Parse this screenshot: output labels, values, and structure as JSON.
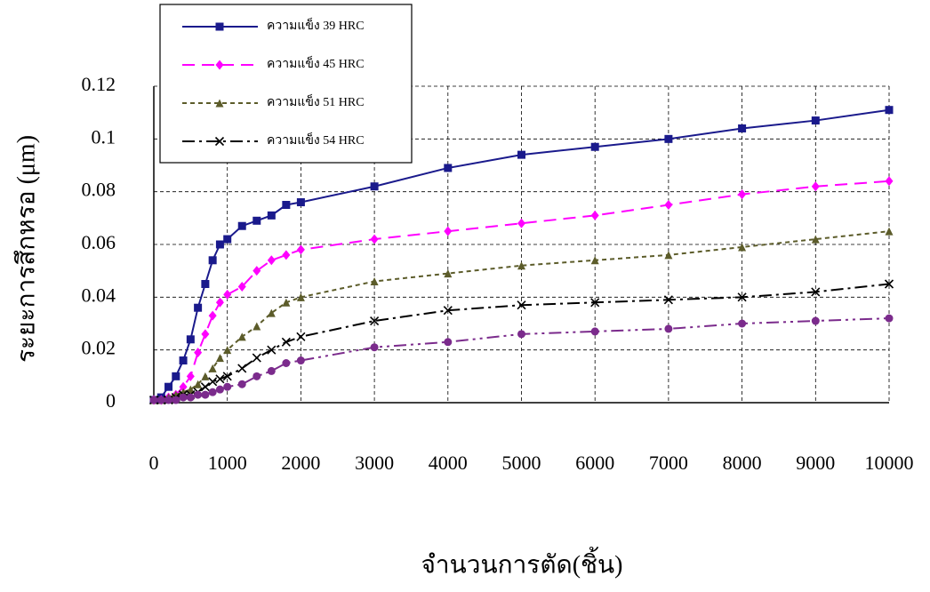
{
  "chart_data": {
    "type": "line",
    "x_label": "จำนวนการตัด(ชิ้น)",
    "y_label": "ระยะการสึกหรอ (μm)",
    "x": [
      0,
      100,
      200,
      300,
      400,
      500,
      600,
      700,
      800,
      900,
      1000,
      1200,
      1400,
      1600,
      1800,
      2000,
      3000,
      4000,
      5000,
      6000,
      7000,
      8000,
      9000,
      10000
    ],
    "series": [
      {
        "name": "ความแข็ง 39 HRC",
        "color": "#1a1a8c",
        "marker": "square",
        "dash": "none",
        "values": [
          0.001,
          0.002,
          0.006,
          0.01,
          0.016,
          0.024,
          0.036,
          0.045,
          0.054,
          0.06,
          0.062,
          0.067,
          0.069,
          0.071,
          0.075,
          0.076,
          0.082,
          0.089,
          0.094,
          0.097,
          0.1,
          0.104,
          0.107,
          0.111
        ]
      },
      {
        "name": "ความแข็ง 45 HRC",
        "color": "#ff00ff",
        "marker": "diamond",
        "dash": "14,8",
        "values": [
          0.001,
          0.001,
          0.002,
          0.003,
          0.006,
          0.01,
          0.019,
          0.026,
          0.033,
          0.038,
          0.041,
          0.044,
          0.05,
          0.054,
          0.056,
          0.058,
          0.062,
          0.065,
          0.068,
          0.071,
          0.075,
          0.079,
          0.082,
          0.084
        ]
      },
      {
        "name": "ความแข็ง 51 HRC",
        "color": "#5c5c2a",
        "marker": "triangle",
        "dash": "5,4",
        "values": [
          0.001,
          0.001,
          0.002,
          0.003,
          0.004,
          0.005,
          0.007,
          0.01,
          0.013,
          0.017,
          0.02,
          0.025,
          0.029,
          0.034,
          0.038,
          0.04,
          0.046,
          0.049,
          0.052,
          0.054,
          0.056,
          0.059,
          0.062,
          0.065
        ]
      },
      {
        "name": "ความแข็ง 54 HRC",
        "color": "#000000",
        "marker": "x",
        "dash": "14,5,3,5",
        "values": [
          0.001,
          0.001,
          0.001,
          0.002,
          0.003,
          0.003,
          0.004,
          0.006,
          0.008,
          0.009,
          0.01,
          0.013,
          0.017,
          0.02,
          0.023,
          0.025,
          0.031,
          0.035,
          0.037,
          0.038,
          0.039,
          0.04,
          0.042,
          0.045
        ]
      },
      {
        "color": "#7b2b8c",
        "marker": "circle",
        "dash": "14,5,3,5,3,5",
        "values": [
          0.001,
          0.001,
          0.001,
          0.001,
          0.002,
          0.002,
          0.003,
          0.003,
          0.004,
          0.005,
          0.006,
          0.007,
          0.01,
          0.012,
          0.015,
          0.016,
          0.021,
          0.023,
          0.026,
          0.027,
          0.028,
          0.03,
          0.031,
          0.032
        ]
      }
    ],
    "xlim": [
      0,
      10000
    ],
    "xticks": [
      0,
      1000,
      2000,
      3000,
      4000,
      5000,
      6000,
      7000,
      8000,
      9000,
      10000
    ],
    "ylim": [
      0,
      0.12
    ],
    "yticks": [
      0,
      0.02,
      0.04,
      0.06,
      0.08,
      0.1,
      0.12
    ],
    "grid": true
  }
}
